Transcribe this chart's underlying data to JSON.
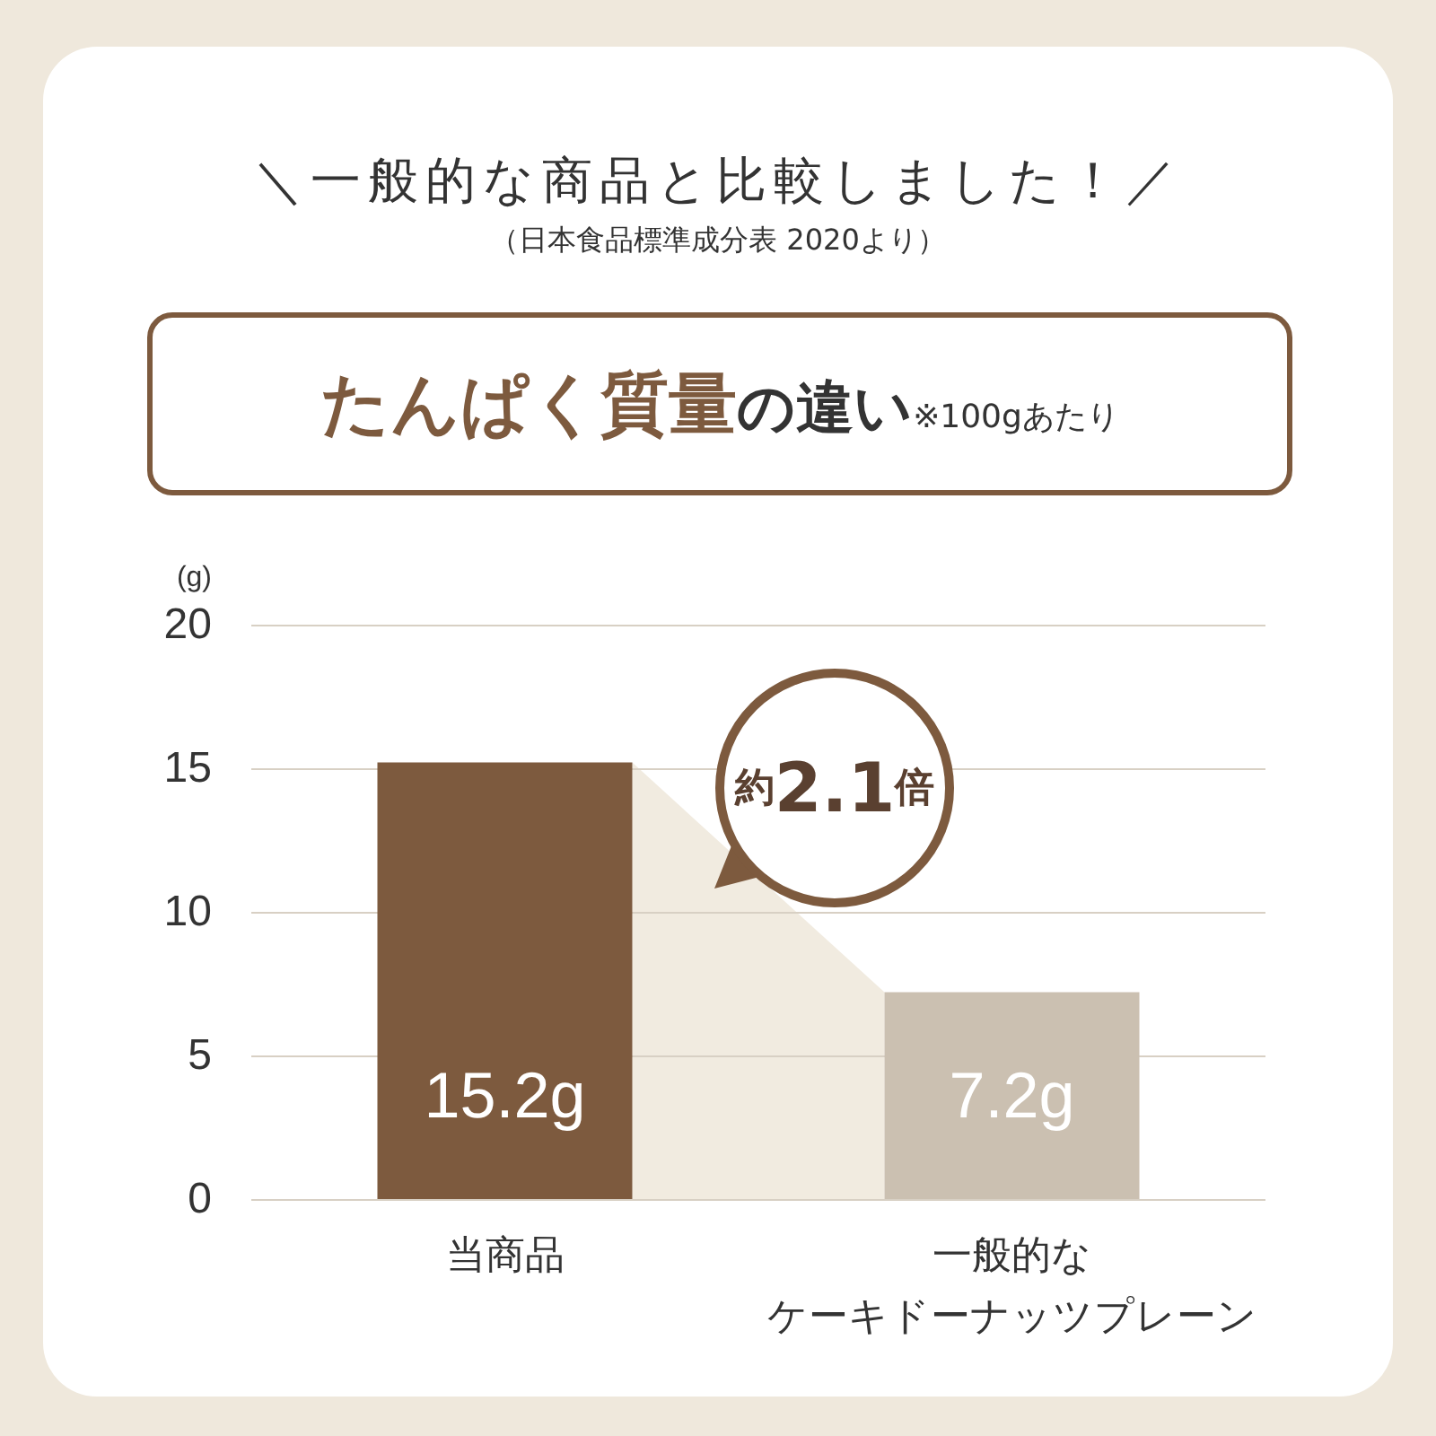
{
  "chart_data": {
    "type": "bar",
    "title": "＼一般的な商品と比較しました！／",
    "subtitle": "（日本食品標準成分表 2020より）",
    "annotations": [
      "たんぱく質量",
      "の違い",
      "※100gあたり",
      "約2.1倍"
    ],
    "ylabel": "(g)",
    "categories": [
      "当商品",
      "一般的なケーキドーナッツプレーン"
    ],
    "values": [
      15.2,
      7.2
    ],
    "colors": [
      "#7d5a3e",
      "#cbc0b1"
    ],
    "value_labels": [
      "15.2g",
      "7.2g"
    ],
    "ylim": [
      0,
      20
    ],
    "yticks": [
      0,
      5,
      10,
      15,
      20
    ],
    "grid": "y"
  }
}
